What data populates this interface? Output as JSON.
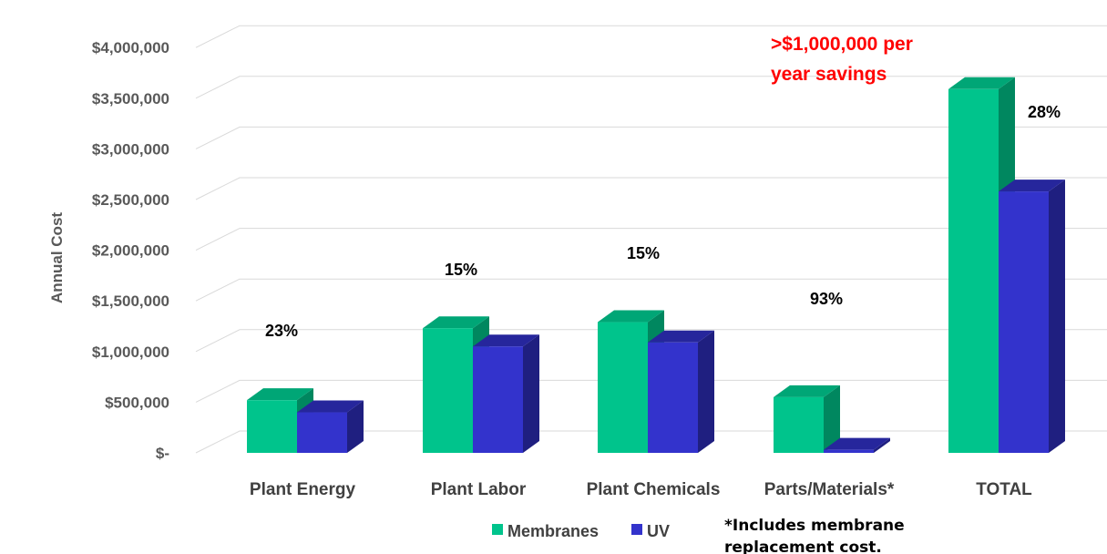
{
  "chart_data": {
    "type": "bar",
    "style": "3d-clustered",
    "title": "",
    "xlabel": "",
    "ylabel": "Annual Cost",
    "ylim": [
      0,
      4000000
    ],
    "y_ticks": [
      {
        "value": 0,
        "label": "$-"
      },
      {
        "value": 500000,
        "label": "$500,000"
      },
      {
        "value": 1000000,
        "label": "$1,000,000"
      },
      {
        "value": 1500000,
        "label": "$1,500,000"
      },
      {
        "value": 2000000,
        "label": "$2,000,000"
      },
      {
        "value": 2500000,
        "label": "$2,500,000"
      },
      {
        "value": 3000000,
        "label": "$3,000,000"
      },
      {
        "value": 3500000,
        "label": "$3,500,000"
      },
      {
        "value": 4000000,
        "label": "$4,000,000"
      }
    ],
    "categories": [
      "Plant Energy",
      "Plant Labor",
      "Plant Chemicals",
      "Parts/Materials*",
      "TOTAL"
    ],
    "series": [
      {
        "name": "Membranes",
        "color": "#00c48c",
        "side_color": "#00875f",
        "top_color": "#00a676",
        "values": [
          520000,
          1230000,
          1290000,
          550000,
          3590000
        ]
      },
      {
        "name": "UV",
        "color": "#3333cc",
        "side_color": "#1f1f80",
        "top_color": "#26269c",
        "values": [
          400000,
          1050000,
          1090000,
          30000,
          2580000
        ]
      }
    ],
    "annotations": [
      "23%",
      "15%",
      "15%",
      "93%",
      "28%"
    ],
    "callout": [
      ">$1,000,000 per",
      "year savings"
    ],
    "footnote": [
      "*Includes membrane",
      "replacement cost."
    ],
    "legend_position": "bottom",
    "grid": true
  }
}
